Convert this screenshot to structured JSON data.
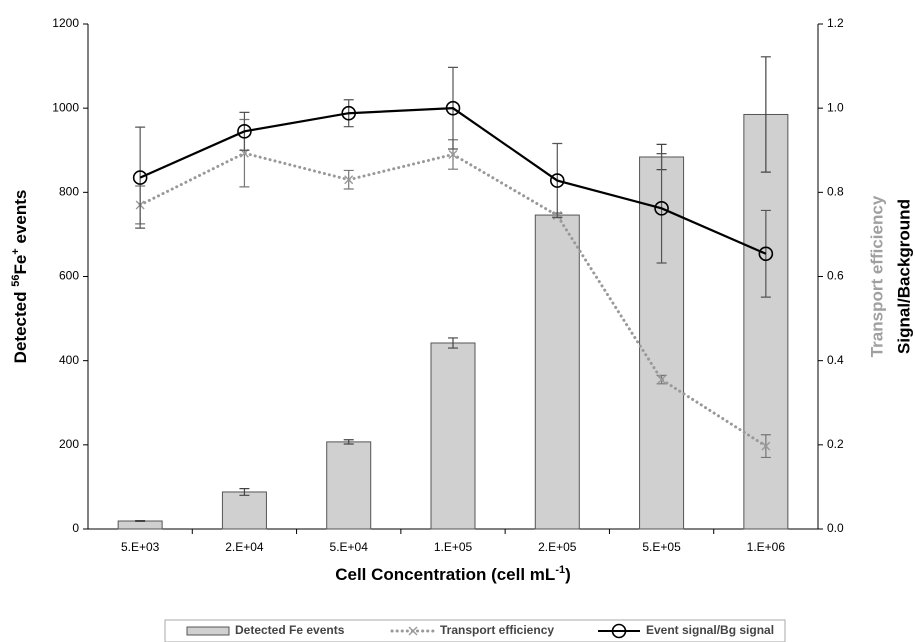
{
  "chart_data": {
    "type": "bar-line",
    "x_label_parts": [
      "Cell Concentration (cell mL",
      "-1",
      ")"
    ],
    "y_label_parts": [
      "Detected ",
      "56",
      "Fe",
      "+",
      " events"
    ],
    "y2_labels": [
      {
        "text": "Transport efficiency",
        "color": "#a0a0a0"
      },
      {
        "text": "Signal/Background",
        "color": "#000000"
      }
    ],
    "categories": [
      "5.E+03",
      "2.E+04",
      "5.E+04",
      "1.E+05",
      "2.E+05",
      "5.E+05",
      "1.E+06"
    ],
    "ylim": [
      0,
      1200
    ],
    "yticks": [
      0,
      200,
      400,
      600,
      800,
      1000,
      1200
    ],
    "y2lim": [
      0,
      1.2
    ],
    "y2ticks": [
      {
        "value": 0,
        "label": "0.0"
      },
      {
        "value": 0.2,
        "label": "0.2"
      },
      {
        "value": 0.4,
        "label": "0.4"
      },
      {
        "value": 0.6,
        "label": "0.6"
      },
      {
        "value": 0.8,
        "label": "0.8"
      },
      {
        "value": 1.0,
        "label": "1.0"
      },
      {
        "value": 1.2,
        "label": "1.2"
      }
    ],
    "series": [
      {
        "name": "Detected Fe events",
        "type": "bar",
        "color": "#d0d0d0",
        "values": [
          19,
          88,
          207,
          442,
          746,
          884,
          985
        ],
        "errors": [
          1,
          8,
          5,
          12,
          5,
          30,
          137
        ]
      },
      {
        "name": "Transport efficiency",
        "type": "line",
        "axis": "y2",
        "marker": "x",
        "dotted": true,
        "color": "#999999",
        "values": [
          0.77,
          0.893,
          0.83,
          0.89,
          0.745,
          0.355,
          0.197
        ],
        "errors": [
          0.045,
          0.08,
          0.022,
          0.035,
          0.005,
          0.01,
          0.027
        ]
      },
      {
        "name": "Event signal/Bg signal",
        "type": "line",
        "axis": "y2",
        "marker": "circle",
        "dotted": false,
        "color": "#000000",
        "values": [
          0.835,
          0.945,
          0.988,
          1.0,
          0.828,
          0.762,
          0.654
        ],
        "errors": [
          0.12,
          0.045,
          0.032,
          0.097,
          0.088,
          0.13,
          0.103
        ]
      }
    ]
  }
}
